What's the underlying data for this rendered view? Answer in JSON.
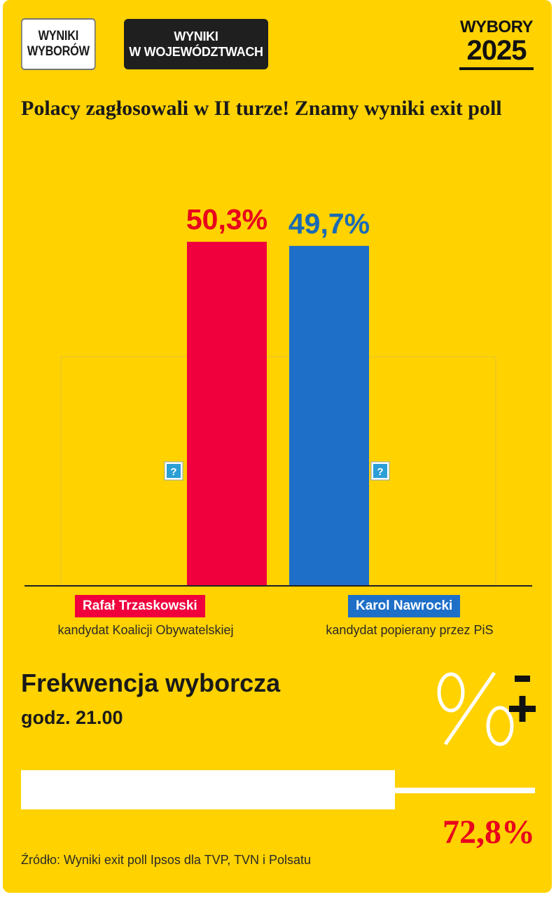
{
  "tabs": {
    "results": "WYNIKI\nWYBORÓW",
    "voivodeships": "WYNIKI\nW WOJEWÓDZTWACH"
  },
  "logo": {
    "top": "WYBORY",
    "year": "2025"
  },
  "headline": "Polacy zagłosowali w II turze! Znamy wyniki exit poll",
  "chart_data": {
    "type": "bar",
    "categories": [
      "Rafał Trzaskowski",
      "Karol Nawrocki"
    ],
    "values": [
      50.3,
      49.7
    ],
    "value_labels": [
      "50,3%",
      "49,7%"
    ],
    "subtitles": [
      "kandydat Koalicji Obywatelskiej",
      "kandydat popierany przez PiS"
    ],
    "colors": [
      "#f0003c",
      "#1e6fc8"
    ],
    "label_colors": [
      "#e8001c",
      "#1a6bb5"
    ],
    "title": "",
    "xlabel": "",
    "ylabel": "",
    "ylim": [
      0,
      58
    ],
    "grid": false,
    "legend": "none"
  },
  "help_glyph": "?",
  "turnout": {
    "title": "Frekwencja wyborcza",
    "time": "godz. 21.00",
    "value": 72.8,
    "value_label": "72,8%"
  },
  "source": "Źródło: Wyniki exit poll Ipsos dla TVP, TVN i Polsatu",
  "icons": [
    "percent-plus-minus-icon",
    "help-icon"
  ]
}
